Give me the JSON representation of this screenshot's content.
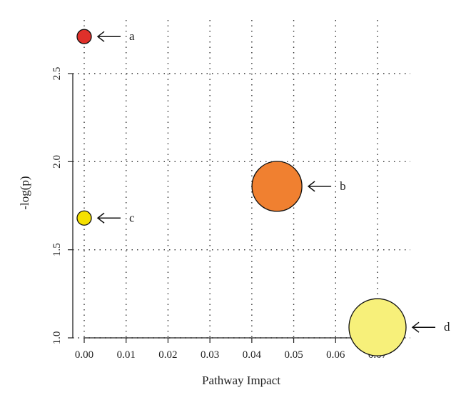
{
  "chart_data": {
    "type": "scatter",
    "title": "",
    "xlabel": "Pathway Impact",
    "ylabel": "-log(p)",
    "xlim": [
      0.0,
      0.07
    ],
    "ylim": [
      1.0,
      2.5
    ],
    "xticks": [
      "0.00",
      "0.01",
      "0.02",
      "0.03",
      "0.04",
      "0.05",
      "0.06",
      "0.07"
    ],
    "yticks": [
      "1.0",
      "1.5",
      "2.0",
      "2.5"
    ],
    "grid": "dotted",
    "points": [
      {
        "label": "a",
        "x": 0.0,
        "y": 2.71,
        "relative_size": 1.0,
        "color": "#e0302a"
      },
      {
        "label": "b",
        "x": 0.046,
        "y": 1.86,
        "relative_size": 3.5,
        "color": "#f08030"
      },
      {
        "label": "c",
        "x": 0.0,
        "y": 1.68,
        "relative_size": 1.0,
        "color": "#f5e000"
      },
      {
        "label": "d",
        "x": 0.07,
        "y": 1.06,
        "relative_size": 4.0,
        "color": "#f7f07a"
      }
    ]
  }
}
